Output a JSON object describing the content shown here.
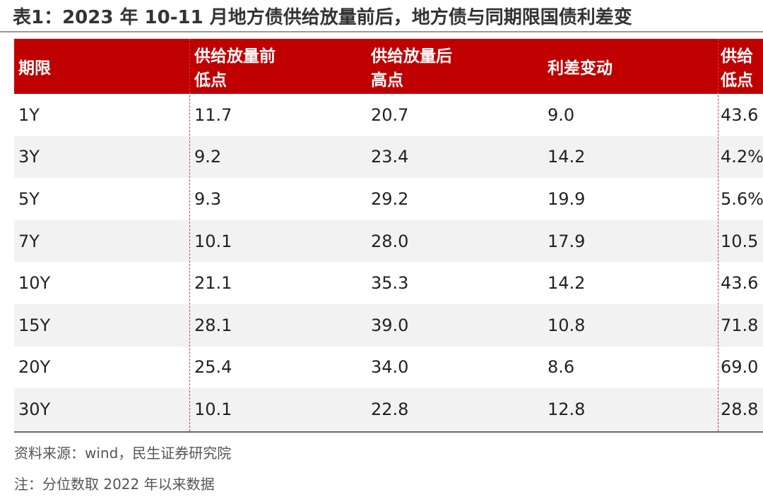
{
  "header": {
    "title": "表1：2023 年 10-11 月地方债供给放量前后，地方债与同期限国债利差变"
  },
  "table": {
    "columns": [
      "期限",
      "供给放量前\n低点",
      "供给放量后\n高点",
      "利差变动",
      "供给\n低点"
    ],
    "rows": [
      [
        "1Y",
        "11.7",
        "20.7",
        "9.0",
        "43.6"
      ],
      [
        "3Y",
        "9.2",
        "23.4",
        "14.2",
        "4.2%"
      ],
      [
        "5Y",
        "9.3",
        "29.2",
        "19.9",
        "5.6%"
      ],
      [
        "7Y",
        "10.1",
        "28.0",
        "17.9",
        "10.5"
      ],
      [
        "10Y",
        "21.1",
        "35.3",
        "14.2",
        "43.6"
      ],
      [
        "15Y",
        "28.1",
        "39.0",
        "10.8",
        "71.8"
      ],
      [
        "20Y",
        "25.4",
        "34.0",
        "8.6",
        "69.0"
      ],
      [
        "30Y",
        "10.1",
        "22.8",
        "12.8",
        "28.8"
      ]
    ]
  },
  "footer": {
    "source": "资料来源：wind，民生证券研究院",
    "note": "注：分位数取 2022 年以来数据"
  }
}
